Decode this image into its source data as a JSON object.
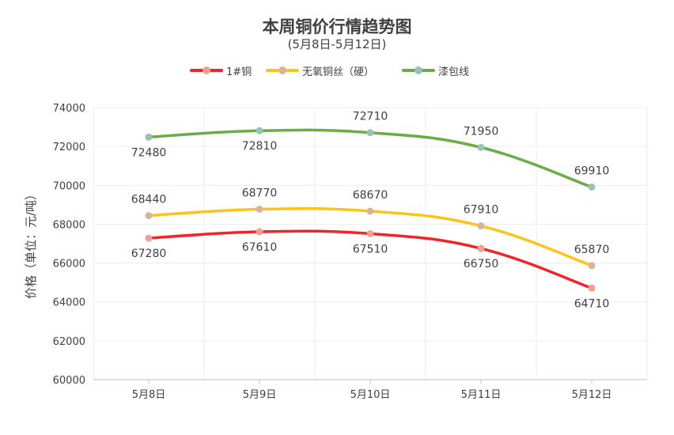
{
  "chart_data": {
    "type": "line",
    "title": "本周铜价行情趋势图",
    "subtitle": "(5月8日-5月12日)",
    "ylabel": "价格（单位：元/吨）",
    "xlabel": "",
    "categories": [
      "5月8日",
      "5月9日",
      "5月10日",
      "5月11日",
      "5月12日"
    ],
    "ylim": [
      60000,
      74000
    ],
    "yticks": [
      60000,
      62000,
      64000,
      66000,
      68000,
      70000,
      72000,
      74000
    ],
    "grid": true,
    "legend": "top-center",
    "smooth": true,
    "series": [
      {
        "name": "1#铜",
        "color": "#f2232b",
        "marker_color": "#f4a08f",
        "values": [
          67280,
          67610,
          67510,
          66750,
          64710
        ],
        "label_pos": [
          "below",
          "below",
          "below",
          "below",
          "below"
        ]
      },
      {
        "name": "无氧铜丝（硬）",
        "color": "#fcc31a",
        "marker_color": "#d8b596",
        "values": [
          68440,
          68770,
          68670,
          67910,
          65870
        ],
        "label_pos": [
          "above",
          "above",
          "above",
          "above",
          "above"
        ]
      },
      {
        "name": "漆包线",
        "color": "#6aac45",
        "marker_color": "#97c2b7",
        "values": [
          72480,
          72810,
          72710,
          71950,
          69910
        ],
        "label_pos": [
          "below",
          "below",
          "above",
          "above",
          "above"
        ]
      }
    ]
  }
}
